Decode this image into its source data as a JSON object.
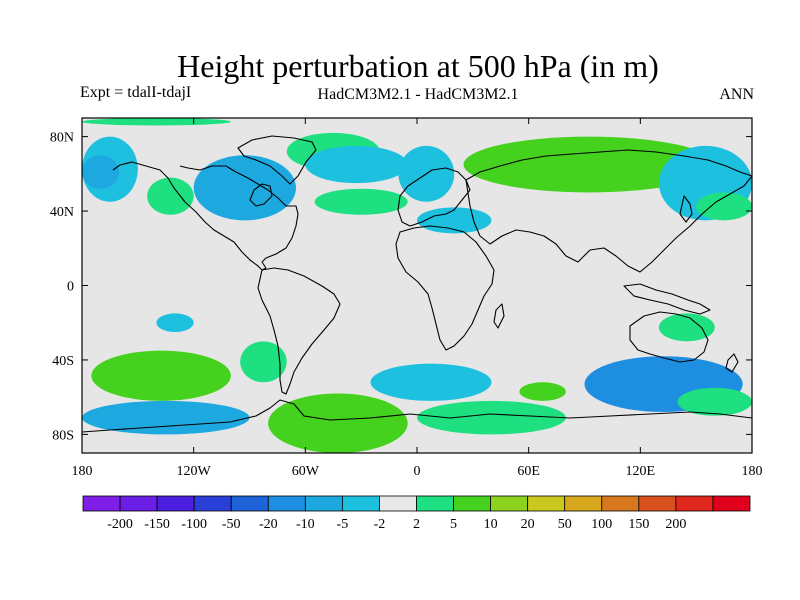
{
  "title": "Height perturbation at 500 hPa (in m)",
  "subtitle_left": "Expt = tdalI-tdajI",
  "subtitle_center": "HadCM3M2.1 - HadCM3M2.1",
  "subtitle_right": "ANN",
  "lat_ticks": [
    {
      "value": 80,
      "label": "80N"
    },
    {
      "value": 40,
      "label": "40N"
    },
    {
      "value": 0,
      "label": "0"
    },
    {
      "value": -40,
      "label": "40S"
    },
    {
      "value": -80,
      "label": "80S"
    }
  ],
  "lon_ticks": [
    {
      "value": -180,
      "label": "180"
    },
    {
      "value": -120,
      "label": "120W"
    },
    {
      "value": -60,
      "label": "60W"
    },
    {
      "value": 0,
      "label": "0"
    },
    {
      "value": 60,
      "label": "60E"
    },
    {
      "value": 120,
      "label": "120E"
    },
    {
      "value": 180,
      "label": "180"
    }
  ],
  "colorbar": {
    "colors": [
      "#7f1ee6",
      "#6a1ee6",
      "#4c1ee0",
      "#2a3fd8",
      "#1e64d8",
      "#1e8ee0",
      "#1ea8e0",
      "#1ec0e0",
      "#e8e8e8",
      "#1ee080",
      "#44d21e",
      "#8cd21e",
      "#c8c81e",
      "#d8a81e",
      "#d8781e",
      "#d8501e",
      "#e0281e",
      "#e0001e"
    ],
    "labels": [
      "-200",
      "-150",
      "-100",
      "-50",
      "-20",
      "-10",
      "-5",
      "-2",
      "2",
      "5",
      "10",
      "20",
      "50",
      "100",
      "150",
      "200"
    ]
  },
  "chart_data": {
    "type": "heatmap",
    "title": "Height perturbation at 500 hPa (in m)",
    "projection": "cylindrical-equidistant",
    "xlim": [
      -180,
      180
    ],
    "ylim": [
      -90,
      90
    ],
    "units": "m",
    "levels": [
      -200,
      -150,
      -100,
      -50,
      -20,
      -10,
      -5,
      -2,
      2,
      5,
      10,
      20,
      50,
      100,
      150,
      200
    ],
    "features": [
      {
        "kind": "negative",
        "level": "-5 to -2",
        "lon": [
          -180,
          -150
        ],
        "lat": [
          45,
          80
        ]
      },
      {
        "kind": "negative",
        "level": "-10 to -5",
        "lon": [
          -180,
          -160
        ],
        "lat": [
          52,
          70
        ]
      },
      {
        "kind": "negative",
        "level": "-10 to -5",
        "lon": [
          -120,
          -65
        ],
        "lat": [
          35,
          70
        ]
      },
      {
        "kind": "positive",
        "level": "2 to 5",
        "lon": [
          -70,
          -20
        ],
        "lat": [
          62,
          82
        ]
      },
      {
        "kind": "positive",
        "level": "2 to 5",
        "lon": [
          -145,
          -120
        ],
        "lat": [
          38,
          58
        ]
      },
      {
        "kind": "positive",
        "level": "2 to 5",
        "lon": [
          -180,
          -100
        ],
        "lat": [
          86,
          90
        ]
      },
      {
        "kind": "negative",
        "level": "-5 to -2",
        "lon": [
          -60,
          -5
        ],
        "lat": [
          55,
          75
        ]
      },
      {
        "kind": "positive",
        "level": "2 to 5",
        "lon": [
          -55,
          -5
        ],
        "lat": [
          38,
          52
        ]
      },
      {
        "kind": "positive",
        "level": "5 to 10",
        "lon": [
          25,
          160
        ],
        "lat": [
          50,
          80
        ]
      },
      {
        "kind": "negative",
        "level": "-5 to -2",
        "lon": [
          130,
          180
        ],
        "lat": [
          35,
          75
        ]
      },
      {
        "kind": "negative",
        "level": "-5 to -2",
        "lon": [
          -10,
          20
        ],
        "lat": [
          45,
          75
        ]
      },
      {
        "kind": "negative",
        "level": "-5 to -2",
        "lon": [
          0,
          40
        ],
        "lat": [
          28,
          42
        ]
      },
      {
        "kind": "positive",
        "level": "2 to 5",
        "lon": [
          150,
          180
        ],
        "lat": [
          35,
          50
        ]
      },
      {
        "kind": "negative",
        "level": "-5 to -2",
        "lon": [
          -140,
          -120
        ],
        "lat": [
          -25,
          -15
        ]
      },
      {
        "kind": "positive",
        "level": "5 to 10",
        "lon": [
          -175,
          -100
        ],
        "lat": [
          -62,
          -35
        ]
      },
      {
        "kind": "positive",
        "level": "2 to 5",
        "lon": [
          -95,
          -70
        ],
        "lat": [
          -52,
          -30
        ]
      },
      {
        "kind": "negative",
        "level": "-10 to -5",
        "lon": [
          -180,
          -90
        ],
        "lat": [
          -80,
          -62
        ]
      },
      {
        "kind": "positive",
        "level": "5 to 10",
        "lon": [
          -80,
          -5
        ],
        "lat": [
          -90,
          -58
        ]
      },
      {
        "kind": "negative",
        "level": "-5 to -2",
        "lon": [
          -25,
          40
        ],
        "lat": [
          -62,
          -42
        ]
      },
      {
        "kind": "positive",
        "level": "2 to 5",
        "lon": [
          0,
          80
        ],
        "lat": [
          -80,
          -62
        ]
      },
      {
        "kind": "positive",
        "level": "5 to 10",
        "lon": [
          55,
          80
        ],
        "lat": [
          -62,
          -52
        ]
      },
      {
        "kind": "negative",
        "level": "-20 to -10",
        "lon": [
          90,
          175
        ],
        "lat": [
          -68,
          -38
        ]
      },
      {
        "kind": "positive",
        "level": "2 to 5",
        "lon": [
          140,
          180
        ],
        "lat": [
          -70,
          -55
        ]
      },
      {
        "kind": "positive",
        "level": "2 to 5",
        "lon": [
          130,
          160
        ],
        "lat": [
          -30,
          -15
        ]
      }
    ]
  }
}
